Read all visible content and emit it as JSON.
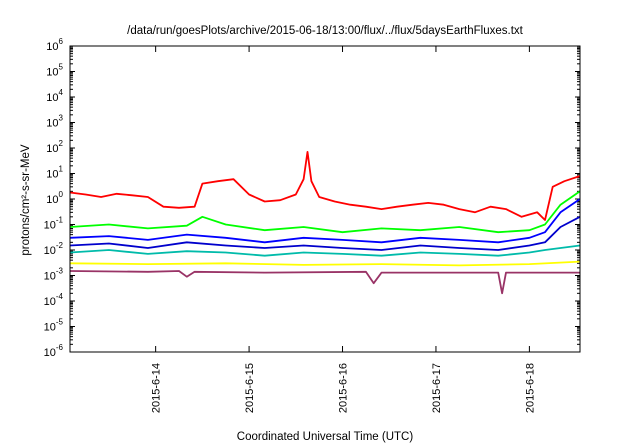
{
  "chart_data": {
    "type": "line",
    "title": "/data/run/goesPlots/archive/2015-06-18/13:00/flux/../flux/5daysEarthFluxes.txt",
    "xlabel": "Coordinated Universal Time (UTC)",
    "ylabel": "protons/cm²-s-sr-MeV",
    "yscale": "log",
    "ylim": [
      1e-06,
      1000000
    ],
    "xlim": [
      "2015-06-13T02:00",
      "2015-06-18T13:00"
    ],
    "grid": false,
    "legend": "none",
    "ytick_labels": [
      {
        "base": "10",
        "exp": "-6"
      },
      {
        "base": "10",
        "exp": "-5"
      },
      {
        "base": "10",
        "exp": "-4"
      },
      {
        "base": "10",
        "exp": "-3"
      },
      {
        "base": "10",
        "exp": "-2"
      },
      {
        "base": "10",
        "exp": "-1"
      },
      {
        "base": "10",
        "exp": "0"
      },
      {
        "base": "10",
        "exp": "1"
      },
      {
        "base": "10",
        "exp": "2"
      },
      {
        "base": "10",
        "exp": "3"
      },
      {
        "base": "10",
        "exp": "4"
      },
      {
        "base": "10",
        "exp": "5"
      },
      {
        "base": "10",
        "exp": "6"
      }
    ],
    "xtick_labels": [
      "2015-6-14",
      "2015-6-15",
      "2015-6-16",
      "2015-6-17",
      "2015-6-18"
    ],
    "series": [
      {
        "color": "#ff0000",
        "x": [
          "2015-06-13T02:00",
          "2015-06-13T06:00",
          "2015-06-13T10:00",
          "2015-06-13T14:00",
          "2015-06-13T18:00",
          "2015-06-13T22:00",
          "2015-06-14T02:00",
          "2015-06-14T06:00",
          "2015-06-14T10:00",
          "2015-06-14T12:00",
          "2015-06-14T16:00",
          "2015-06-14T20:00",
          "2015-06-15T00:00",
          "2015-06-15T04:00",
          "2015-06-15T08:00",
          "2015-06-15T12:00",
          "2015-06-15T14:00",
          "2015-06-15T15:00",
          "2015-06-15T16:00",
          "2015-06-15T18:00",
          "2015-06-15T22:00",
          "2015-06-16T02:00",
          "2015-06-16T06:00",
          "2015-06-16T10:00",
          "2015-06-16T14:00",
          "2015-06-16T18:00",
          "2015-06-16T22:00",
          "2015-06-17T02:00",
          "2015-06-17T06:00",
          "2015-06-17T10:00",
          "2015-06-17T14:00",
          "2015-06-17T18:00",
          "2015-06-17T22:00",
          "2015-06-18T02:00",
          "2015-06-18T04:00",
          "2015-06-18T06:00",
          "2015-06-18T09:00",
          "2015-06-18T13:00"
        ],
        "y": [
          1.8,
          1.5,
          1.2,
          1.6,
          1.4,
          1.2,
          0.5,
          0.45,
          0.5,
          4,
          5,
          6,
          1.5,
          0.8,
          0.9,
          1.5,
          6,
          70,
          5,
          1.2,
          0.8,
          0.6,
          0.5,
          0.4,
          0.5,
          0.6,
          0.7,
          0.6,
          0.4,
          0.3,
          0.5,
          0.4,
          0.2,
          0.3,
          0.15,
          3,
          5,
          8
        ]
      },
      {
        "color": "#00ff00",
        "x": [
          "2015-06-13T02:00",
          "2015-06-13T12:00",
          "2015-06-13T22:00",
          "2015-06-14T08:00",
          "2015-06-14T12:00",
          "2015-06-14T18:00",
          "2015-06-15T04:00",
          "2015-06-15T14:00",
          "2015-06-16T00:00",
          "2015-06-16T10:00",
          "2015-06-16T20:00",
          "2015-06-17T06:00",
          "2015-06-17T16:00",
          "2015-06-18T00:00",
          "2015-06-18T04:00",
          "2015-06-18T08:00",
          "2015-06-18T13:00"
        ],
        "y": [
          0.08,
          0.1,
          0.07,
          0.09,
          0.2,
          0.1,
          0.06,
          0.08,
          0.05,
          0.07,
          0.06,
          0.08,
          0.05,
          0.06,
          0.1,
          0.6,
          2
        ]
      },
      {
        "color": "#0000ff",
        "x": [
          "2015-06-13T02:00",
          "2015-06-13T12:00",
          "2015-06-13T22:00",
          "2015-06-14T08:00",
          "2015-06-14T18:00",
          "2015-06-15T04:00",
          "2015-06-15T14:00",
          "2015-06-16T00:00",
          "2015-06-16T10:00",
          "2015-06-16T20:00",
          "2015-06-17T06:00",
          "2015-06-17T16:00",
          "2015-06-18T00:00",
          "2015-06-18T04:00",
          "2015-06-18T08:00",
          "2015-06-18T13:00"
        ],
        "y": [
          0.03,
          0.035,
          0.025,
          0.04,
          0.03,
          0.02,
          0.03,
          0.025,
          0.02,
          0.03,
          0.025,
          0.02,
          0.03,
          0.05,
          0.3,
          1
        ]
      },
      {
        "color": "#0000cc",
        "x": [
          "2015-06-13T02:00",
          "2015-06-13T12:00",
          "2015-06-13T22:00",
          "2015-06-14T08:00",
          "2015-06-14T18:00",
          "2015-06-15T04:00",
          "2015-06-15T14:00",
          "2015-06-16T00:00",
          "2015-06-16T10:00",
          "2015-06-16T20:00",
          "2015-06-17T06:00",
          "2015-06-17T16:00",
          "2015-06-18T00:00",
          "2015-06-18T04:00",
          "2015-06-18T08:00",
          "2015-06-18T13:00"
        ],
        "y": [
          0.015,
          0.018,
          0.012,
          0.02,
          0.015,
          0.012,
          0.015,
          0.012,
          0.01,
          0.015,
          0.012,
          0.01,
          0.015,
          0.02,
          0.08,
          0.2
        ]
      },
      {
        "color": "#00bbaa",
        "x": [
          "2015-06-13T02:00",
          "2015-06-13T12:00",
          "2015-06-13T22:00",
          "2015-06-14T08:00",
          "2015-06-14T18:00",
          "2015-06-15T04:00",
          "2015-06-15T14:00",
          "2015-06-16T00:00",
          "2015-06-16T10:00",
          "2015-06-16T20:00",
          "2015-06-17T06:00",
          "2015-06-17T16:00",
          "2015-06-18T00:00",
          "2015-06-18T04:00",
          "2015-06-18T08:00",
          "2015-06-18T13:00"
        ],
        "y": [
          0.008,
          0.01,
          0.007,
          0.009,
          0.008,
          0.006,
          0.008,
          0.007,
          0.006,
          0.008,
          0.007,
          0.006,
          0.008,
          0.01,
          0.012,
          0.015
        ]
      },
      {
        "color": "#ffff00",
        "x": [
          "2015-06-13T02:00",
          "2015-06-13T22:00",
          "2015-06-14T18:00",
          "2015-06-15T14:00",
          "2015-06-16T10:00",
          "2015-06-17T06:00",
          "2015-06-18T00:00",
          "2015-06-18T13:00"
        ],
        "y": [
          0.003,
          0.0028,
          0.003,
          0.0026,
          0.0028,
          0.0025,
          0.0028,
          0.0035
        ]
      },
      {
        "color": "#993366",
        "x": [
          "2015-06-13T02:00",
          "2015-06-13T22:00",
          "2015-06-14T06:00",
          "2015-06-14T08:00",
          "2015-06-14T10:00",
          "2015-06-15T04:00",
          "2015-06-16T06:00",
          "2015-06-16T08:00",
          "2015-06-16T10:00",
          "2015-06-17T04:00",
          "2015-06-17T16:00",
          "2015-06-17T17:00",
          "2015-06-17T18:00",
          "2015-06-18T13:00"
        ],
        "y": [
          0.0015,
          0.0014,
          0.0015,
          0.0009,
          0.0014,
          0.0013,
          0.0014,
          0.0005,
          0.0013,
          0.0013,
          0.0013,
          0.0002,
          0.0013,
          0.0013
        ]
      }
    ]
  }
}
